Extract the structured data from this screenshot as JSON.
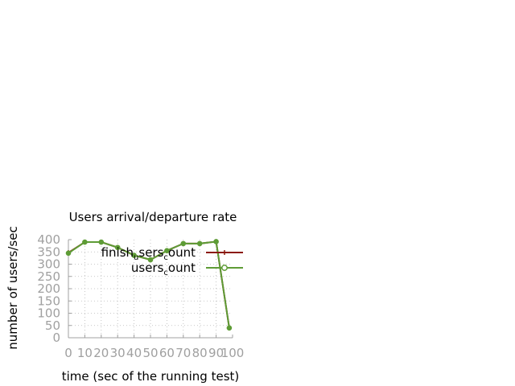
{
  "chart_data": {
    "type": "line",
    "title": "Users arrival/departure rate",
    "xlabel": "time (sec of the running test)",
    "ylabel": "number of users/sec",
    "x": [
      0,
      10,
      20,
      30,
      40,
      50,
      60,
      70,
      80,
      90,
      98
    ],
    "xticks": [
      0,
      10,
      20,
      30,
      40,
      50,
      60,
      70,
      80,
      90,
      100
    ],
    "xtick_labels": [
      "0",
      "10",
      "20",
      "30",
      "40",
      "50",
      "60",
      "70",
      "80",
      "90",
      "100"
    ],
    "yticks": [
      0,
      50,
      100,
      150,
      200,
      250,
      300,
      350,
      400
    ],
    "ytick_labels": [
      "0",
      "50",
      "100",
      "150",
      "200",
      "250",
      "300",
      "350",
      "400"
    ],
    "xlim": [
      0,
      100
    ],
    "ylim": [
      0,
      400
    ],
    "grid": true,
    "legend_position": "top-right",
    "series": [
      {
        "name": "finish_users_count",
        "legend_parts": [
          "finish",
          "u",
          "sers",
          "c",
          "ount"
        ],
        "color": "#8b1a0e",
        "marker": "plus",
        "values": [
          347,
          390,
          390,
          368,
          336,
          318,
          355,
          384,
          384,
          392,
          40
        ]
      },
      {
        "name": "users_count",
        "legend_parts": [
          "users",
          "c",
          "ount"
        ],
        "color": "#5e9c36",
        "marker": "circle",
        "values": [
          345,
          390,
          390,
          368,
          336,
          318,
          355,
          384,
          384,
          392,
          40
        ]
      }
    ]
  }
}
